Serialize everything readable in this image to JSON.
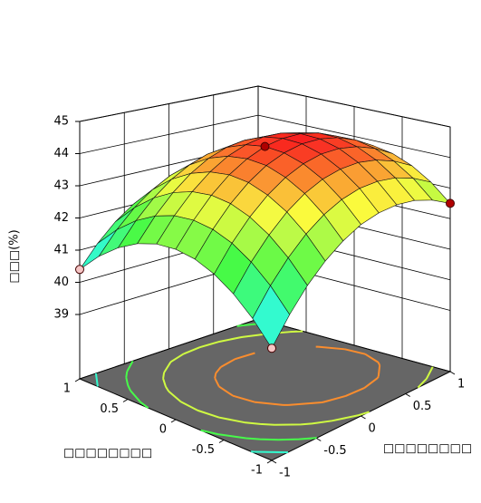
{
  "chart_data": {
    "type": "surface",
    "x_label": "□□□□□□□□",
    "y_label": "□□□□□□□□",
    "z_label": "□□□(%)",
    "x": [
      -1,
      -0.8,
      -0.6,
      -0.4,
      -0.2,
      0,
      0.2,
      0.4,
      0.6,
      0.8,
      1
    ],
    "y": [
      -1,
      -0.8,
      -0.6,
      -0.4,
      -0.2,
      0,
      0.2,
      0.4,
      0.6,
      0.8,
      1
    ],
    "z": [
      [
        40.3,
        41.07,
        41.72,
        42.24,
        42.64,
        42.93,
        43.08,
        43.12,
        43.04,
        42.83,
        42.5
      ],
      [
        40.96,
        41.72,
        42.35,
        42.87,
        43.26,
        43.53,
        43.68,
        43.7,
        43.61,
        43.39,
        43.05
      ],
      [
        41.47,
        42.22,
        42.84,
        43.35,
        43.73,
        43.99,
        44.12,
        44.14,
        44.03,
        43.8,
        43.45
      ],
      [
        41.84,
        42.58,
        43.19,
        43.68,
        44.05,
        44.3,
        44.43,
        44.43,
        44.31,
        44.07,
        43.71
      ],
      [
        42.07,
        42.79,
        43.4,
        43.88,
        44.24,
        44.47,
        44.59,
        44.58,
        44.45,
        44.2,
        43.83
      ],
      [
        42.15,
        42.86,
        43.46,
        43.93,
        44.27,
        44.5,
        44.6,
        44.59,
        44.45,
        44.18,
        43.8
      ],
      [
        42.09,
        42.79,
        43.37,
        43.83,
        44.17,
        44.38,
        44.48,
        44.45,
        44.3,
        44.02,
        43.63
      ],
      [
        41.88,
        42.57,
        43.14,
        43.59,
        43.92,
        44.12,
        44.2,
        44.16,
        44.0,
        43.72,
        43.31
      ],
      [
        41.53,
        42.21,
        42.77,
        43.21,
        43.52,
        43.72,
        43.79,
        43.74,
        43.56,
        43.27,
        42.85
      ],
      [
        41.04,
        41.71,
        42.26,
        42.68,
        42.99,
        43.17,
        43.23,
        43.17,
        42.98,
        42.68,
        42.25
      ],
      [
        40.4,
        41.06,
        41.6,
        42.01,
        42.3,
        42.48,
        42.52,
        42.45,
        42.26,
        41.94,
        41.5
      ]
    ],
    "xlim": [
      -1,
      1
    ],
    "ylim": [
      -1,
      1
    ],
    "zlim": [
      37,
      45
    ],
    "xticks": [
      -1,
      -0.5,
      0,
      0.5,
      1
    ],
    "yticks": [
      -1,
      -0.5,
      0,
      0.5,
      1
    ],
    "zticks": [
      39,
      40,
      41,
      42,
      43,
      44,
      45
    ],
    "points": {
      "x": [
        1,
        0,
        -1,
        -1
      ],
      "y": [
        -1,
        0,
        1,
        -1
      ],
      "z": [
        40.4,
        44.5,
        42.5,
        40.3
      ],
      "colors": [
        "#f6c6c6",
        "#b00000",
        "#b00000",
        "#f6c6c6"
      ]
    },
    "floor_color": "#666666",
    "contours": true,
    "grid": true
  }
}
